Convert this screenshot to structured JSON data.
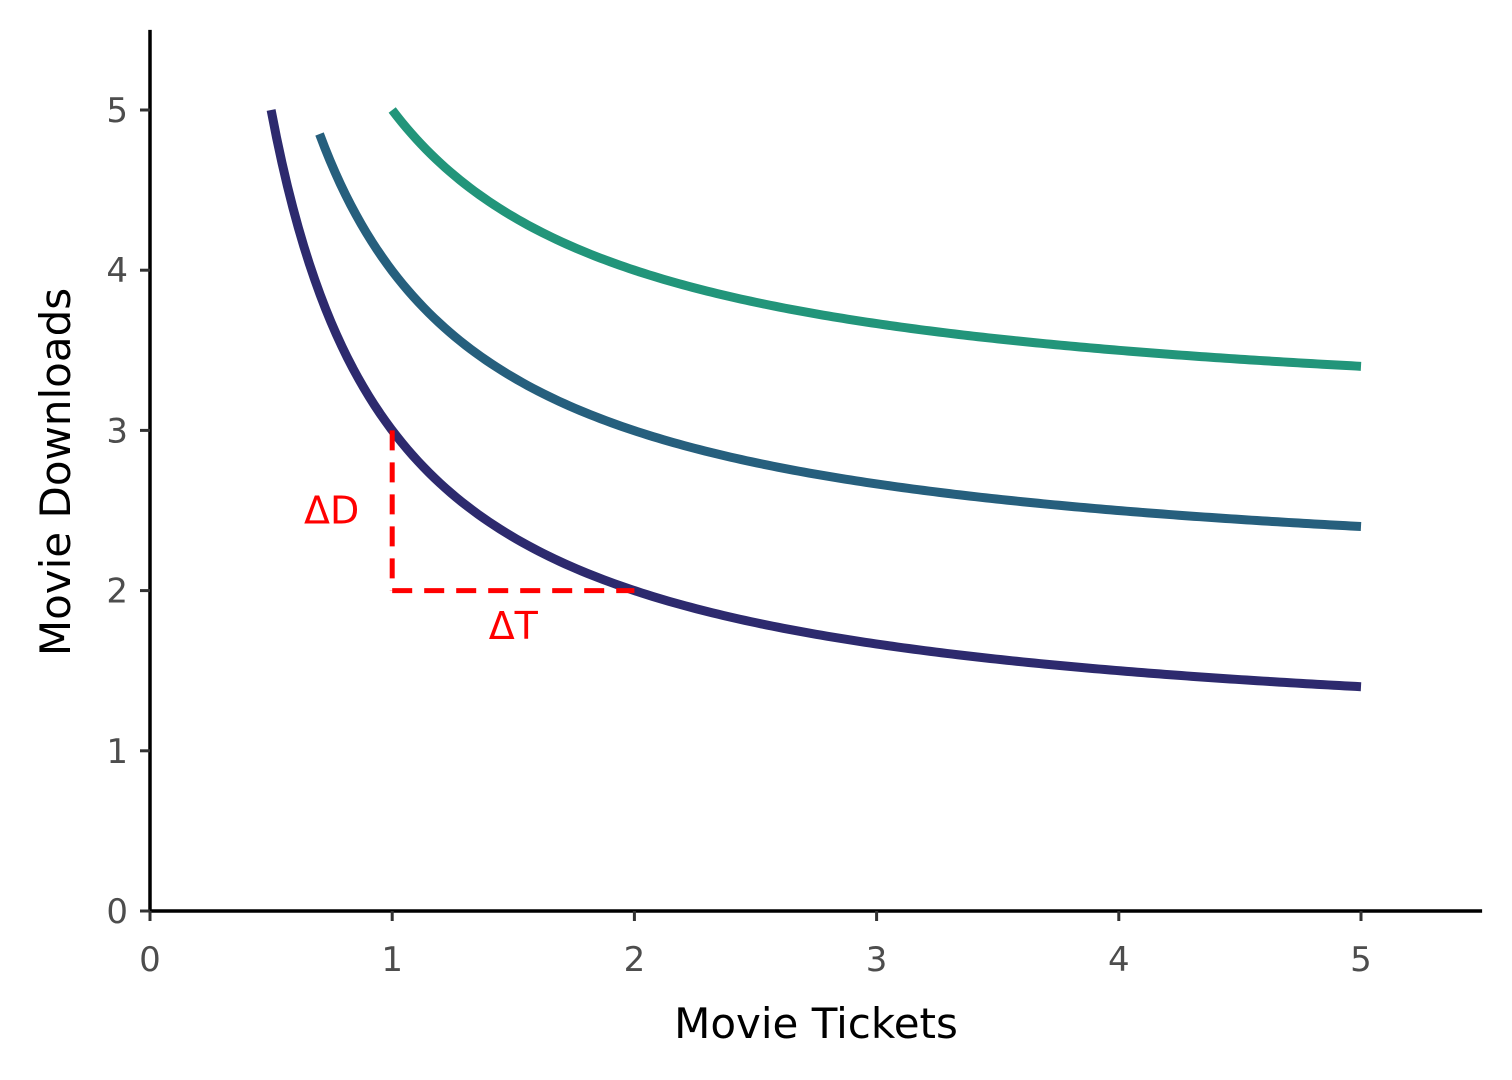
{
  "chart_data": {
    "type": "line",
    "title": "",
    "xlabel": "Movie Tickets",
    "ylabel": "Movie Downloads",
    "xlim": [
      0,
      5.5
    ],
    "ylim": [
      0,
      5.5
    ],
    "xticks": [
      "0",
      "1",
      "2",
      "3",
      "4",
      "5"
    ],
    "yticks": [
      "0",
      "1",
      "2",
      "3",
      "4",
      "5"
    ],
    "grid": false,
    "legend": "none",
    "series": [
      {
        "color": "#2d2a6e",
        "x": [
          0.5,
          0.6,
          0.75,
          1.0,
          1.25,
          1.5,
          2.0,
          2.5,
          3.0,
          3.5,
          4.0,
          4.5,
          5.0
        ],
        "y": [
          5.0,
          4.33,
          3.67,
          3.0,
          2.6,
          2.33,
          2.0,
          1.8,
          1.67,
          1.57,
          1.5,
          1.44,
          1.4
        ]
      },
      {
        "color": "#265f7d",
        "x": [
          0.7,
          0.8,
          1.0,
          1.25,
          1.5,
          2.0,
          2.5,
          3.0,
          3.5,
          4.0,
          4.5,
          5.0
        ],
        "y": [
          4.85,
          4.5,
          4.0,
          3.6,
          3.33,
          3.0,
          2.8,
          2.67,
          2.57,
          2.5,
          2.44,
          2.4
        ]
      },
      {
        "color": "#22957a",
        "x": [
          1.0,
          1.25,
          1.5,
          2.0,
          2.5,
          3.0,
          3.5,
          4.0,
          4.5,
          5.0
        ],
        "y": [
          5.0,
          4.6,
          4.33,
          4.0,
          3.8,
          3.67,
          3.57,
          3.5,
          3.44,
          3.4
        ]
      }
    ],
    "annotations": [
      {
        "label": "ΔD",
        "color": "#ff0000",
        "segment": {
          "x": [
            1,
            1
          ],
          "y": [
            3,
            2
          ]
        },
        "text_at": {
          "x": 0.75,
          "y": 2.5
        }
      },
      {
        "label": "ΔT",
        "color": "#ff0000",
        "segment": {
          "x": [
            1,
            2
          ],
          "y": [
            2,
            2
          ]
        },
        "text_at": {
          "x": 1.5,
          "y": 1.78
        }
      }
    ]
  }
}
